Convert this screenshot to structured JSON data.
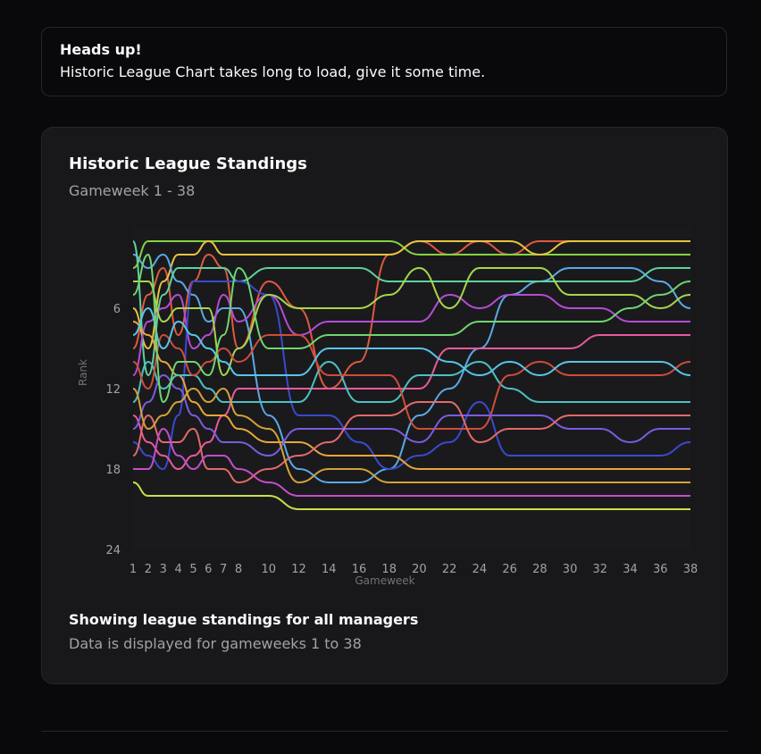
{
  "alert": {
    "title": "Heads up!",
    "description": "Historic League Chart takes long to load, give it some time."
  },
  "card": {
    "title": "Historic League Standings",
    "subtitle": "Gameweek 1 - 38",
    "footer_title": "Showing league standings for all managers",
    "footer_description": "Data is displayed for gameweeks 1 to 38"
  },
  "chart_data": {
    "type": "line",
    "xlabel": "Gameweek",
    "ylabel": "Rank",
    "x": [
      1,
      2,
      3,
      4,
      5,
      6,
      7,
      8,
      10,
      12,
      14,
      16,
      18,
      20,
      22,
      24,
      26,
      28,
      30,
      32,
      34,
      36,
      38
    ],
    "xticks": [
      1,
      2,
      3,
      4,
      5,
      6,
      7,
      8,
      10,
      12,
      14,
      16,
      18,
      20,
      22,
      24,
      26,
      28,
      30,
      32,
      34,
      36,
      38
    ],
    "yticks": [
      6,
      12,
      18,
      24
    ],
    "ylim": [
      24,
      0
    ],
    "xlim": [
      1,
      38
    ],
    "grid": false,
    "series": [
      {
        "color": "#e05a3c",
        "values": [
          9,
          5,
          3,
          8,
          4,
          2,
          3,
          9,
          4,
          6,
          12,
          10,
          2,
          1,
          2,
          1,
          2,
          1,
          1,
          1,
          1,
          1,
          1
        ]
      },
      {
        "color": "#84d33f",
        "values": [
          3,
          1,
          1,
          1,
          1,
          1,
          1,
          1,
          1,
          1,
          1,
          1,
          1,
          2,
          2,
          2,
          2,
          2,
          2,
          2,
          2,
          2,
          2
        ]
      },
      {
        "color": "#e8c340",
        "values": [
          6,
          9,
          4,
          2,
          2,
          1,
          2,
          2,
          2,
          2,
          2,
          2,
          2,
          1,
          1,
          1,
          1,
          2,
          1,
          1,
          1,
          1,
          1
        ]
      },
      {
        "color": "#5aa9e6",
        "values": [
          2,
          3,
          2,
          4,
          5,
          7,
          6,
          6,
          14,
          18,
          19,
          19,
          18,
          14,
          12,
          9,
          5,
          4,
          3,
          3,
          3,
          4,
          6
        ]
      },
      {
        "color": "#5ed39c",
        "values": [
          1,
          11,
          5,
          3,
          3,
          3,
          3,
          4,
          3,
          3,
          3,
          3,
          4,
          4,
          4,
          4,
          4,
          4,
          4,
          4,
          4,
          3,
          3
        ]
      },
      {
        "color": "#b54cd6",
        "values": [
          11,
          7,
          6,
          5,
          9,
          8,
          5,
          7,
          5,
          8,
          7,
          7,
          7,
          7,
          5,
          6,
          5,
          5,
          6,
          6,
          7,
          7,
          7
        ]
      },
      {
        "color": "#3a4ad0",
        "values": [
          16,
          17,
          18,
          14,
          4,
          4,
          4,
          4,
          5,
          14,
          14,
          16,
          18,
          17,
          16,
          13,
          17,
          17,
          17,
          17,
          17,
          17,
          16
        ]
      },
      {
        "color": "#a6d64a",
        "values": [
          4,
          4,
          7,
          6,
          6,
          6,
          11,
          9,
          5,
          6,
          6,
          6,
          5,
          3,
          6,
          3,
          3,
          3,
          5,
          5,
          5,
          6,
          5
        ]
      },
      {
        "color": "#e85a9c",
        "values": [
          14,
          16,
          17,
          18,
          17,
          16,
          14,
          12,
          12,
          12,
          12,
          12,
          12,
          12,
          9,
          9,
          9,
          9,
          9,
          8,
          8,
          8,
          8
        ]
      },
      {
        "color": "#e8a63a",
        "values": [
          7,
          8,
          10,
          11,
          13,
          14,
          14,
          15,
          16,
          16,
          17,
          17,
          17,
          18,
          18,
          18,
          18,
          18,
          18,
          18,
          18,
          18,
          18
        ]
      },
      {
        "color": "#4ec0c0",
        "values": [
          13,
          10,
          12,
          11,
          11,
          12,
          13,
          13,
          13,
          13,
          10,
          13,
          13,
          11,
          11,
          10,
          12,
          13,
          13,
          13,
          13,
          13,
          13
        ]
      },
      {
        "color": "#d04c3a",
        "values": [
          10,
          12,
          8,
          9,
          11,
          10,
          9,
          10,
          8,
          8,
          11,
          11,
          11,
          15,
          15,
          15,
          11,
          10,
          11,
          11,
          11,
          11,
          10
        ]
      },
      {
        "color": "#7b5be0",
        "values": [
          15,
          13,
          11,
          12,
          14,
          15,
          16,
          16,
          17,
          15,
          15,
          15,
          15,
          16,
          14,
          14,
          14,
          14,
          15,
          15,
          16,
          15,
          15
        ]
      },
      {
        "color": "#58c5e8",
        "values": [
          8,
          6,
          9,
          7,
          8,
          9,
          10,
          11,
          11,
          11,
          9,
          9,
          9,
          9,
          10,
          11,
          10,
          11,
          10,
          10,
          10,
          10,
          11
        ]
      },
      {
        "color": "#e36a6a",
        "values": [
          17,
          14,
          16,
          16,
          15,
          18,
          18,
          19,
          18,
          17,
          16,
          14,
          14,
          13,
          13,
          16,
          15,
          15,
          14,
          14,
          14,
          14,
          14
        ]
      },
      {
        "color": "#6fd66f",
        "values": [
          5,
          2,
          13,
          10,
          10,
          11,
          8,
          3,
          9,
          9,
          8,
          8,
          8,
          8,
          8,
          7,
          7,
          7,
          7,
          7,
          6,
          5,
          4
        ]
      },
      {
        "color": "#d3a13a",
        "values": [
          12,
          15,
          14,
          13,
          12,
          13,
          12,
          14,
          15,
          19,
          18,
          18,
          19,
          19,
          19,
          19,
          19,
          19,
          19,
          19,
          19,
          19,
          19
        ]
      },
      {
        "color": "#c34ec8",
        "values": [
          18,
          18,
          15,
          17,
          18,
          17,
          17,
          18,
          19,
          20,
          20,
          20,
          20,
          20,
          20,
          20,
          20,
          20,
          20,
          20,
          20,
          20,
          20
        ]
      },
      {
        "color": "#c9e04a",
        "values": [
          19,
          20,
          20,
          20,
          20,
          20,
          20,
          20,
          20,
          21,
          21,
          21,
          21,
          21,
          21,
          21,
          21,
          21,
          21,
          21,
          21,
          21,
          21
        ]
      }
    ]
  }
}
